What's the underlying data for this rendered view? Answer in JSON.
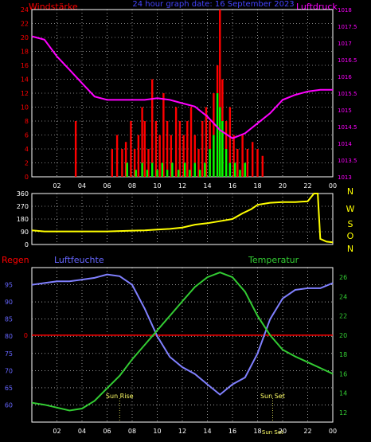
{
  "header": {
    "left_label": "Windstärke",
    "center_label": "24 hour graph date: 16 September 2023",
    "right_label": "Luftdruck"
  },
  "colors": {
    "wind": "#ff0000",
    "gust": "#00ff00",
    "pressure": "#ff00ff",
    "direction": "#ffff00",
    "humidity": "#8080ff",
    "temperature": "#33cc33",
    "rain": "#ff0000",
    "axis_left": "#ff0000",
    "axis_pressure": "#ff00ff",
    "axis_humidity": "#6666ff",
    "axis_temp": "#33cc33",
    "direction_axis": "#ffff00",
    "sun": "#ffff66",
    "grid": "#ffffff"
  },
  "time_axis": {
    "ticks": [
      "02",
      "04",
      "06",
      "08",
      "10",
      "12",
      "14",
      "16",
      "18",
      "20",
      "22",
      "00"
    ]
  },
  "panel_bottom": {
    "regen_label": "Regen",
    "humidity_label": "Luftfeuchte",
    "temperature_label": "Temperatur",
    "sunrise_label": "Sun Rise",
    "sunset_label": "Sun Set",
    "sunset_axis_label": "Sun Set"
  },
  "chart_data": [
    {
      "type": "bar",
      "name": "wind-pressure",
      "x_unit": "hour",
      "xlim": [
        0,
        24
      ],
      "ylim": [
        0,
        24
      ],
      "y_ticks": [
        0,
        2,
        4,
        6,
        8,
        10,
        12,
        14,
        16,
        18,
        20,
        22,
        24
      ],
      "y2lim": [
        1013,
        1018
      ],
      "y2_ticks": [
        "1013",
        "1013.5",
        "1014",
        "1014.5",
        "1015",
        "1015.5",
        "1016",
        "1016.5",
        "1017",
        "1017.5",
        "1018"
      ],
      "wind_bars": [
        [
          3.5,
          8
        ],
        [
          6.4,
          4
        ],
        [
          6.8,
          6
        ],
        [
          7.2,
          4
        ],
        [
          7.5,
          5
        ],
        [
          7.9,
          8
        ],
        [
          8.2,
          4
        ],
        [
          8.5,
          6
        ],
        [
          8.8,
          10
        ],
        [
          9.0,
          8
        ],
        [
          9.3,
          4
        ],
        [
          9.6,
          14
        ],
        [
          9.9,
          8
        ],
        [
          10.2,
          6
        ],
        [
          10.5,
          12
        ],
        [
          10.8,
          8
        ],
        [
          11.1,
          6
        ],
        [
          11.5,
          10
        ],
        [
          11.8,
          8
        ],
        [
          12.1,
          6
        ],
        [
          12.4,
          8
        ],
        [
          12.7,
          10
        ],
        [
          13.0,
          6
        ],
        [
          13.3,
          4
        ],
        [
          13.6,
          8
        ],
        [
          13.9,
          10
        ],
        [
          14.2,
          8
        ],
        [
          14.5,
          12
        ],
        [
          14.8,
          16
        ],
        [
          15.0,
          24
        ],
        [
          15.2,
          14
        ],
        [
          15.5,
          8
        ],
        [
          15.8,
          10
        ],
        [
          16.1,
          6
        ],
        [
          16.4,
          4
        ],
        [
          16.8,
          6
        ],
        [
          17.2,
          4
        ],
        [
          17.6,
          5
        ],
        [
          18.0,
          4
        ],
        [
          18.4,
          3
        ]
      ],
      "gust_bars": [
        [
          7.6,
          2
        ],
        [
          8.3,
          1
        ],
        [
          8.8,
          2
        ],
        [
          9.2,
          1
        ],
        [
          9.6,
          2
        ],
        [
          10.0,
          1
        ],
        [
          10.4,
          2
        ],
        [
          10.8,
          1
        ],
        [
          11.2,
          2
        ],
        [
          11.7,
          1
        ],
        [
          12.2,
          2
        ],
        [
          12.6,
          1
        ],
        [
          13.0,
          2
        ],
        [
          13.4,
          1
        ],
        [
          13.8,
          2
        ],
        [
          14.2,
          4
        ],
        [
          14.5,
          6
        ],
        [
          14.8,
          12
        ],
        [
          15.0,
          10
        ],
        [
          15.2,
          8
        ],
        [
          15.5,
          4
        ],
        [
          15.8,
          2
        ],
        [
          16.2,
          2
        ],
        [
          16.6,
          1
        ],
        [
          17.0,
          2
        ]
      ],
      "pressure": [
        [
          0,
          1017.2
        ],
        [
          1,
          1017.1
        ],
        [
          2,
          1016.6
        ],
        [
          3,
          1016.2
        ],
        [
          4,
          1015.8
        ],
        [
          5,
          1015.4
        ],
        [
          6,
          1015.3
        ],
        [
          7,
          1015.3
        ],
        [
          8,
          1015.3
        ],
        [
          9,
          1015.3
        ],
        [
          10,
          1015.35
        ],
        [
          11,
          1015.3
        ],
        [
          12,
          1015.2
        ],
        [
          13,
          1015.1
        ],
        [
          14,
          1014.8
        ],
        [
          15,
          1014.4
        ],
        [
          16,
          1014.15
        ],
        [
          17,
          1014.3
        ],
        [
          18,
          1014.6
        ],
        [
          19,
          1014.9
        ],
        [
          20,
          1015.3
        ],
        [
          21,
          1015.45
        ],
        [
          22,
          1015.55
        ],
        [
          23,
          1015.6
        ],
        [
          24,
          1015.6
        ]
      ]
    },
    {
      "type": "line",
      "name": "wind-direction",
      "xlim": [
        0,
        24
      ],
      "ylim": [
        0,
        360
      ],
      "y_ticks": [
        0,
        90,
        180,
        270,
        360
      ],
      "compass_labels": [
        "N",
        "W",
        "S",
        "O",
        "N"
      ],
      "direction": [
        [
          0,
          100
        ],
        [
          1,
          92
        ],
        [
          2,
          92
        ],
        [
          3,
          92
        ],
        [
          4,
          92
        ],
        [
          5,
          92
        ],
        [
          6,
          92
        ],
        [
          7,
          95
        ],
        [
          8,
          98
        ],
        [
          9,
          100
        ],
        [
          10,
          105
        ],
        [
          11,
          110
        ],
        [
          12,
          120
        ],
        [
          13,
          140
        ],
        [
          14,
          150
        ],
        [
          15,
          165
        ],
        [
          16,
          180
        ],
        [
          16.8,
          220
        ],
        [
          17.5,
          250
        ],
        [
          18.0,
          280
        ],
        [
          19,
          295
        ],
        [
          20,
          300
        ],
        [
          21,
          300
        ],
        [
          22,
          305
        ],
        [
          22.5,
          360
        ],
        [
          22.8,
          360
        ],
        [
          23.0,
          40
        ],
        [
          23.5,
          20
        ],
        [
          24,
          15
        ]
      ]
    },
    {
      "type": "line",
      "name": "humidity-temperature",
      "xlim": [
        0,
        24
      ],
      "rain_axis_label": "0",
      "humidity_ylim": [
        55,
        100
      ],
      "humidity_ticks": [
        60,
        65,
        70,
        75,
        80,
        85,
        90,
        95
      ],
      "temperature_ylim": [
        11,
        27
      ],
      "temperature_ticks": [
        12,
        14,
        16,
        18,
        20,
        22,
        24,
        26
      ],
      "humidity": [
        [
          0,
          95
        ],
        [
          1,
          95.5
        ],
        [
          2,
          96
        ],
        [
          3,
          96
        ],
        [
          4,
          96.5
        ],
        [
          5,
          97
        ],
        [
          6,
          98
        ],
        [
          7,
          97.5
        ],
        [
          8,
          95
        ],
        [
          9,
          88
        ],
        [
          10,
          80
        ],
        [
          11,
          74
        ],
        [
          12,
          71
        ],
        [
          13,
          69
        ],
        [
          14,
          66
        ],
        [
          15,
          63
        ],
        [
          16,
          66
        ],
        [
          17,
          68
        ],
        [
          18,
          75
        ],
        [
          19,
          85
        ],
        [
          20,
          91
        ],
        [
          21,
          93.5
        ],
        [
          22,
          94
        ],
        [
          23,
          94
        ],
        [
          24,
          95.5
        ]
      ],
      "temperature": [
        [
          0,
          13.0
        ],
        [
          1,
          12.8
        ],
        [
          2,
          12.5
        ],
        [
          3,
          12.2
        ],
        [
          4,
          12.4
        ],
        [
          5,
          13.2
        ],
        [
          6,
          14.5
        ],
        [
          7,
          15.8
        ],
        [
          8,
          17.5
        ],
        [
          9,
          19.0
        ],
        [
          10,
          20.5
        ],
        [
          11,
          22.0
        ],
        [
          12,
          23.5
        ],
        [
          13,
          25.0
        ],
        [
          14,
          26.0
        ],
        [
          15,
          26.5
        ],
        [
          16,
          26.0
        ],
        [
          17,
          24.5
        ],
        [
          18,
          22.0
        ],
        [
          19,
          20.0
        ],
        [
          20,
          18.5
        ],
        [
          21,
          17.8
        ],
        [
          22,
          17.2
        ],
        [
          23,
          16.6
        ],
        [
          24,
          16.0
        ]
      ],
      "rain": [
        [
          0,
          0
        ],
        [
          24,
          0
        ]
      ]
    }
  ]
}
